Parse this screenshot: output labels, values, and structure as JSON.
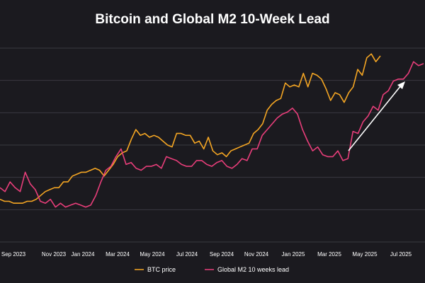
{
  "chart_data": {
    "type": "line",
    "title": "Bitcoin and Global M2 10-Week Lead",
    "xlabel": "",
    "ylabel": "",
    "x_tick_labels": [
      "Sep 2023",
      "Nov 2023",
      "Jan 2024",
      "Mar 2024",
      "May 2024",
      "Jul 2024",
      "Sep 2024",
      "Nov 2024",
      "Jan 2025",
      "Mar 2025",
      "May 2025",
      "Jul 2025"
    ],
    "grid": "horizontal",
    "legend_position": "bottom",
    "annotation": "upward-arrow",
    "series": [
      {
        "name": "BTC price",
        "color": "#f5a623",
        "values": [
          22,
          21,
          21,
          20,
          20,
          20,
          21,
          21,
          22,
          24,
          26,
          27,
          28,
          28,
          31,
          31,
          34,
          35,
          36,
          36,
          37,
          38,
          37,
          34,
          37,
          40,
          44,
          46,
          47,
          53,
          58,
          55,
          56,
          54,
          55,
          54,
          52,
          50,
          49,
          56,
          56,
          55,
          55,
          51,
          52,
          48,
          54,
          47,
          45,
          46,
          44,
          47,
          48,
          49,
          50,
          51,
          56,
          58,
          61,
          68,
          71,
          73,
          74,
          82,
          80,
          81,
          80,
          87,
          80,
          87,
          86,
          84,
          79,
          73,
          77,
          76,
          72,
          77,
          80,
          89,
          86,
          95,
          97,
          93,
          96
        ]
      },
      {
        "name": "Global M2 10 weeks lead",
        "color": "#e83e7a",
        "values": [
          28,
          26,
          31,
          28,
          26,
          36,
          30,
          27,
          21,
          20,
          22,
          18,
          20,
          18,
          19,
          20,
          19,
          18,
          19,
          24,
          31,
          37,
          39,
          44,
          48,
          40,
          41,
          38,
          37,
          39,
          39,
          40,
          38,
          44,
          43,
          42,
          40,
          39,
          39,
          42,
          42,
          40,
          39,
          41,
          42,
          39,
          38,
          40,
          43,
          42,
          48,
          48,
          55,
          58,
          61,
          64,
          66,
          67,
          69,
          66,
          58,
          52,
          47,
          49,
          45,
          44,
          44,
          47,
          42,
          43,
          57,
          56,
          62,
          65,
          70,
          68,
          76,
          78,
          83,
          84,
          84,
          87,
          93,
          91,
          92
        ]
      }
    ]
  },
  "legend": {
    "btc_label": "BTC price",
    "m2_label": "Global M2 10 weeks lead"
  }
}
